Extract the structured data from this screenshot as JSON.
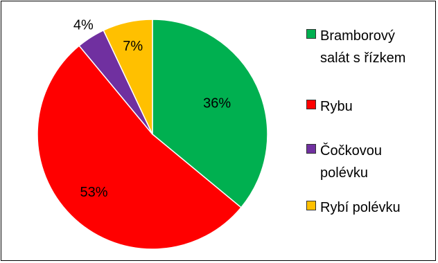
{
  "chart_data": {
    "type": "pie",
    "title": "",
    "slices": [
      {
        "label": "Bramborový\nsalát s řízkem",
        "value": 36,
        "display": "36%",
        "color": "#00B050"
      },
      {
        "label": "Rybu",
        "value": 53,
        "display": "53%",
        "color": "#FF0000"
      },
      {
        "label": "Čočkovou\npolévku",
        "value": 4,
        "display": "4%",
        "color": "#7030A0"
      },
      {
        "label": "Rybí polévku",
        "value": 7,
        "display": "7%",
        "color": "#FFC000"
      }
    ],
    "legend_position": "right",
    "start_angle_deg": 0,
    "direction": "clockwise"
  },
  "legend": {
    "items": [
      {
        "label": "Bramborový\nsalát s řízkem",
        "color": "#00B050"
      },
      {
        "label": "Rybu",
        "color": "#FF0000"
      },
      {
        "label": "Čočkovou\npolévku",
        "color": "#7030A0"
      },
      {
        "label": "Rybí polévku",
        "color": "#FFC000"
      }
    ]
  }
}
